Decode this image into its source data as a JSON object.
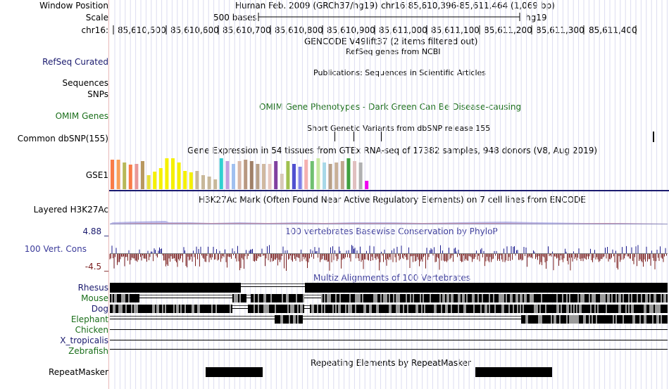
{
  "header": {
    "window_position_label": "Window Position",
    "assembly_title": "Human Feb. 2009 (GRCh37/hg19)",
    "window_coords": "chr16:85,610,396-85,611,464 (1,069 bp)",
    "scale_label": "Scale",
    "scale_bar_text": "500 bases",
    "scale_assembly": "hg19",
    "chrom_label": "chr16:",
    "ruler_ticks": [
      "85,610,500",
      "85,610,600",
      "85,610,700",
      "85,610,800",
      "85,610,900",
      "85,611,000",
      "85,611,100",
      "85,611,200",
      "85,611,300",
      "85,611,400"
    ]
  },
  "tracks": {
    "gencode": {
      "title": "GENCODE V49lift37 (2 items filtered out)"
    },
    "refseq": {
      "label": "RefSeq Curated",
      "title": "RefSeq genes from NCBI"
    },
    "sequences": {
      "label": "Sequences",
      "title": "Publications: Sequences in Scientific Articles"
    },
    "snps": {
      "label": "SNPs"
    },
    "omim": {
      "label": "OMIM Genes",
      "title": "OMIM Gene Phenotypes - Dark Green Can Be Disease-causing"
    },
    "dbsnp": {
      "label": "Common dbSNP(155)",
      "title": "Short Genetic Variants from dbSNP release 155"
    },
    "gtex": {
      "label": "GSE1",
      "title": "Gene Expression in 54 tissues from GTEx RNA-seq of 17382 samples, 948 donors (V8, Aug 2019)"
    },
    "h3k27ac": {
      "label": "Layered H3K27Ac",
      "title": "H3K27Ac Mark (Often Found Near Active Regulatory Elements) on 7 cell lines from ENCODE"
    },
    "phylop": {
      "label": "100 Vert. Cons",
      "title": "100 vertebrates Basewise Conservation by PhyloP",
      "max_label": "4.88 _",
      "min_label": "-4.5 _"
    },
    "multiz": {
      "title": "Multiz Alignments of 100 Vertebrates",
      "species": [
        "Rhesus",
        "Mouse",
        "Dog",
        "Elephant",
        "Chicken",
        "X_tropicalis",
        "Zebrafish"
      ]
    },
    "repeatmasker": {
      "label": "RepeatMasker",
      "title": "Repeating Elements by RepeatMasker"
    }
  },
  "colors": {
    "label_navy": "#1a1a6e",
    "label_green": "#1a6e1a",
    "phylop_pos": "#1a1a8c",
    "phylop_neg": "#7a1e1e",
    "gtex_bars": [
      "#f97c47",
      "#f9a05a",
      "#b8b858",
      "#f97c47",
      "#e89898",
      "#b89860",
      "#e7e03a",
      "#f5f000",
      "#f5f000",
      "#f5f000",
      "#f5f000",
      "#f5f000",
      "#f5f000",
      "#f5f000",
      "#c8b89a",
      "#c8b89a",
      "#c8b89a",
      "#c8b89a",
      "#30d0d0",
      "#c0a0e0",
      "#a0c0f0",
      "#d8b8a8",
      "#b89880",
      "#a08068",
      "#b8a088",
      "#d0b8a0",
      "#e8c8c0",
      "#8040a0",
      "#d8c8b8",
      "#a0c050",
      "#5050d0",
      "#8080e8",
      "#f5b0b0",
      "#70c070",
      "#c8e8a0",
      "#a8d8e8",
      "#b8a088",
      "#c8b098",
      "#c0a890",
      "#40a040",
      "#e0c0c0",
      "#b0b0b0",
      "#f000f0"
    ],
    "gtex_heights": [
      42,
      42,
      38,
      35,
      36,
      40,
      20,
      25,
      30,
      44,
      44,
      38,
      26,
      24,
      26,
      20,
      18,
      14,
      44,
      40,
      36,
      40,
      42,
      40,
      36,
      36,
      36,
      40,
      22,
      40,
      36,
      32,
      42,
      40,
      44,
      38,
      36,
      38,
      40,
      44,
      40,
      38,
      12
    ]
  }
}
